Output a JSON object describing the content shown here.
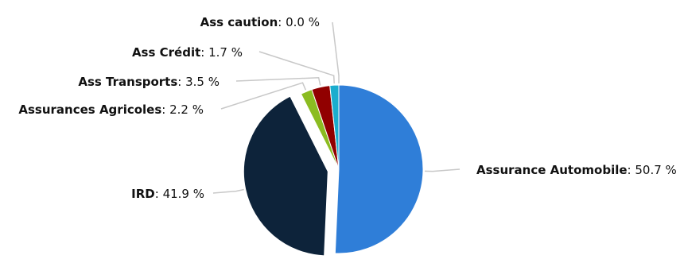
{
  "chart_data": {
    "type": "pie",
    "title": "",
    "slices": [
      {
        "name": "Assurance Automobile",
        "value": 50.7,
        "value_label": "50.7 %",
        "color": "#2f7ed8"
      },
      {
        "name": "IRD",
        "value": 41.9,
        "value_label": "41.9 %",
        "color": "#0d233a"
      },
      {
        "name": "Assurances Agricoles",
        "value": 2.2,
        "value_label": "2.2 %",
        "color": "#8bbc21"
      },
      {
        "name": "Ass Transports",
        "value": 3.5,
        "value_label": "3.5 %",
        "color": "#910000"
      },
      {
        "name": "Ass Crédit",
        "value": 1.7,
        "value_label": "1.7 %",
        "color": "#1aadce"
      },
      {
        "name": "Ass caution",
        "value": 0.0,
        "value_label": "0.0 %",
        "color": "#492970"
      }
    ],
    "exploded_slice": "IRD",
    "label_separator": ": "
  }
}
